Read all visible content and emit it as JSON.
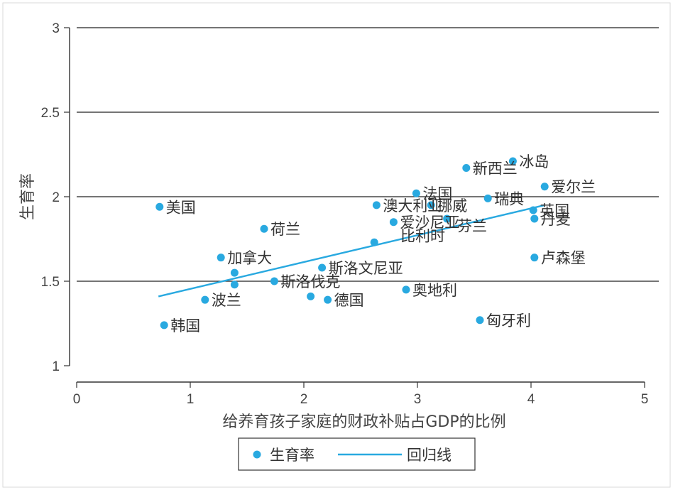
{
  "chart_data": {
    "type": "scatter",
    "xlabel": "给养育孩子家庭的财政补贴占GDP的比例",
    "ylabel": "生育率",
    "xlim": [
      0,
      5
    ],
    "ylim": [
      1,
      3
    ],
    "xticks": [
      0,
      1,
      2,
      3,
      4,
      5
    ],
    "yticks": [
      1,
      1.5,
      2,
      2.5,
      3
    ],
    "xtick_labels": [
      "0",
      "1",
      "2",
      "3",
      "4",
      "5"
    ],
    "ytick_labels": [
      "1",
      "1.5",
      "2",
      "2.5",
      "3"
    ],
    "grid": "horizontal",
    "legend_position": "bottom",
    "point_color": "#29a9e0",
    "line_color": "#29a9e0",
    "series": [
      {
        "name": "生育率",
        "kind": "scatter",
        "points": [
          {
            "x": 0.73,
            "y": 1.94,
            "label": "美国"
          },
          {
            "x": 0.77,
            "y": 1.24,
            "label": "韩国"
          },
          {
            "x": 1.13,
            "y": 1.39,
            "label": "波兰"
          },
          {
            "x": 1.27,
            "y": 1.64,
            "label": "加拿大"
          },
          {
            "x": 1.39,
            "y": 1.55,
            "label": ""
          },
          {
            "x": 1.39,
            "y": 1.48,
            "label": ""
          },
          {
            "x": 1.65,
            "y": 1.81,
            "label": "荷兰"
          },
          {
            "x": 1.74,
            "y": 1.5,
            "label": "斯洛伐克"
          },
          {
            "x": 2.06,
            "y": 1.41,
            "label": ""
          },
          {
            "x": 2.16,
            "y": 1.58,
            "label": "斯洛文尼亚"
          },
          {
            "x": 2.21,
            "y": 1.39,
            "label": "德国"
          },
          {
            "x": 2.62,
            "y": 1.73,
            "label": ""
          },
          {
            "x": 2.64,
            "y": 1.95,
            "label": "澳大利亚"
          },
          {
            "x": 2.79,
            "y": 1.85,
            "label": "爱沙尼亚"
          },
          {
            "x": 2.9,
            "y": 1.45,
            "label": "奥地利"
          },
          {
            "x": 2.99,
            "y": 2.02,
            "label": "法国"
          },
          {
            "x": 3.12,
            "y": 1.95,
            "label": "挪威"
          },
          {
            "x": 3.26,
            "y": 1.87,
            "label": ""
          },
          {
            "x": 3.43,
            "y": 2.17,
            "label": "新西兰"
          },
          {
            "x": 3.55,
            "y": 1.27,
            "label": "匈牙利"
          },
          {
            "x": 3.62,
            "y": 1.99,
            "label": "瑞典"
          },
          {
            "x": 3.84,
            "y": 2.21,
            "label": "冰岛"
          },
          {
            "x": 4.02,
            "y": 1.92,
            "label": "英国"
          },
          {
            "x": 4.03,
            "y": 1.87,
            "label": "丹麦"
          },
          {
            "x": 4.03,
            "y": 1.64,
            "label": "卢森堡"
          },
          {
            "x": 4.12,
            "y": 2.06,
            "label": "爱尔兰"
          }
        ]
      },
      {
        "name": "回归线",
        "kind": "line",
        "points": [
          {
            "x": 0.72,
            "y": 1.41
          },
          {
            "x": 4.12,
            "y": 1.95
          }
        ]
      }
    ],
    "free_labels": [
      {
        "text": "比利时",
        "x": 2.85,
        "y": 1.77
      },
      {
        "text": "芬兰",
        "x": 3.35,
        "y": 1.83
      }
    ]
  }
}
